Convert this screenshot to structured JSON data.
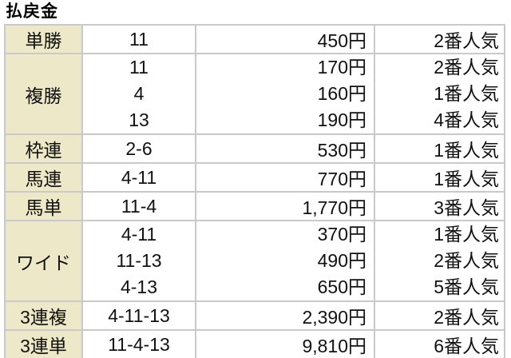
{
  "title": "払戻金",
  "colors": {
    "type_cell_bg": "#ede9c8",
    "border": "#c9c9c9",
    "text": "#111111",
    "background": "#ffffff"
  },
  "table": {
    "rows": [
      {
        "type": "単勝",
        "combos": [
          "11"
        ],
        "payouts": [
          "450円"
        ],
        "popularity": [
          "2番人気"
        ]
      },
      {
        "type": "複勝",
        "combos": [
          "11",
          "4",
          "13"
        ],
        "payouts": [
          "170円",
          "160円",
          "190円"
        ],
        "popularity": [
          "2番人気",
          "1番人気",
          "4番人気"
        ]
      },
      {
        "type": "枠連",
        "combos": [
          "2-6"
        ],
        "payouts": [
          "530円"
        ],
        "popularity": [
          "1番人気"
        ]
      },
      {
        "type": "馬連",
        "combos": [
          "4-11"
        ],
        "payouts": [
          "770円"
        ],
        "popularity": [
          "1番人気"
        ]
      },
      {
        "type": "馬単",
        "combos": [
          "11-4"
        ],
        "payouts": [
          "1,770円"
        ],
        "popularity": [
          "3番人気"
        ]
      },
      {
        "type": "ワイド",
        "combos": [
          "4-11",
          "11-13",
          "4-13"
        ],
        "payouts": [
          "370円",
          "490円",
          "650円"
        ],
        "popularity": [
          "1番人気",
          "2番人気",
          "5番人気"
        ]
      },
      {
        "type": "3連複",
        "combos": [
          "4-11-13"
        ],
        "payouts": [
          "2,390円"
        ],
        "popularity": [
          "2番人気"
        ]
      },
      {
        "type": "3連単",
        "combos": [
          "11-4-13"
        ],
        "payouts": [
          "9,810円"
        ],
        "popularity": [
          "6番人気"
        ]
      }
    ]
  }
}
